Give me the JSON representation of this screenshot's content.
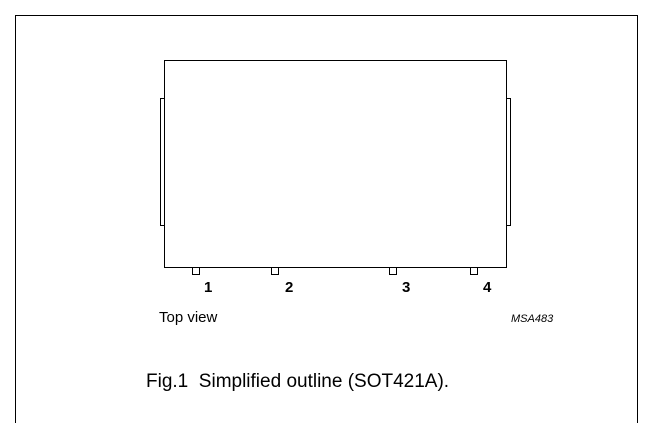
{
  "pins": [
    {
      "number": "1"
    },
    {
      "number": "2"
    },
    {
      "number": "3"
    },
    {
      "number": "4"
    }
  ],
  "view_label": "Top view",
  "drawing_code": "MSA483",
  "caption": "Fig.1  Simplified outline (SOT421A)."
}
